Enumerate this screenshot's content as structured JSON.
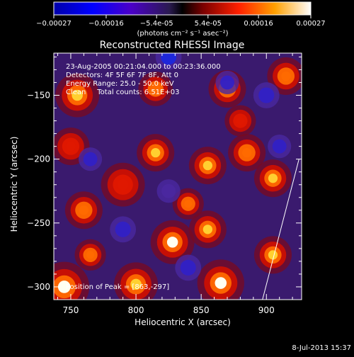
{
  "colorbar": {
    "tick_labels": [
      "-0.00027",
      "-0.00016",
      "-5.4e-05",
      "5.4e-05",
      "0.00016",
      "0.00027"
    ],
    "unit_label": "(photons cm⁻² s⁻¹ asec⁻²)",
    "range": [
      -0.00027,
      0.00027
    ]
  },
  "chart_data": {
    "type": "heatmap",
    "title": "Reconstructed RHESSI Image",
    "xlabel": "Heliocentric X (arcsec)",
    "ylabel": "Heliocentric Y (arcsec)",
    "xlim": [
      737,
      927
    ],
    "ylim": [
      -310,
      -117
    ],
    "x_ticks": [
      750,
      800,
      850,
      900
    ],
    "y_ticks": [
      -300,
      -250,
      -200,
      -150
    ],
    "x_tick_labels": [
      "750",
      "800",
      "850",
      "900"
    ],
    "y_tick_labels": [
      "-300",
      "-250",
      "-200",
      "-150"
    ],
    "annotations": [
      "23-Aug-2005 00:21:04.000 to 00:23:36.000",
      "Detectors: 4F 5F 6F 7F 8F, Att 0",
      "Energy Range: 25.0 - 50.0 keV",
      "Clean     Total counts: 6.51E+03"
    ],
    "peak_label": "Position of Peak = [863,-297]",
    "limb_line": [
      [
        897,
        -310
      ],
      [
        925,
        -200
      ]
    ],
    "blobs": [
      {
        "x": 745,
        "y": -300,
        "v": 1.0,
        "r": 16
      },
      {
        "x": 800,
        "y": -298,
        "v": 0.8,
        "r": 14
      },
      {
        "x": 865,
        "y": -297,
        "v": 1.0,
        "r": 15
      },
      {
        "x": 828,
        "y": -265,
        "v": 0.95,
        "r": 14
      },
      {
        "x": 855,
        "y": -255,
        "v": 0.75,
        "r": 12
      },
      {
        "x": 905,
        "y": -275,
        "v": 0.75,
        "r": 12
      },
      {
        "x": 765,
        "y": -275,
        "v": 0.6,
        "r": 10
      },
      {
        "x": 760,
        "y": -240,
        "v": 0.7,
        "r": 12
      },
      {
        "x": 790,
        "y": -220,
        "v": 0.55,
        "r": 14
      },
      {
        "x": 815,
        "y": -195,
        "v": 0.8,
        "r": 12
      },
      {
        "x": 855,
        "y": -205,
        "v": 0.75,
        "r": 12
      },
      {
        "x": 885,
        "y": -195,
        "v": 0.7,
        "r": 12
      },
      {
        "x": 905,
        "y": -215,
        "v": 0.85,
        "r": 12
      },
      {
        "x": 840,
        "y": -235,
        "v": 0.6,
        "r": 10
      },
      {
        "x": 750,
        "y": -190,
        "v": 0.55,
        "r": 12
      },
      {
        "x": 755,
        "y": -150,
        "v": 0.75,
        "r": 14
      },
      {
        "x": 815,
        "y": -145,
        "v": 0.6,
        "r": 11
      },
      {
        "x": 870,
        "y": -145,
        "v": 0.7,
        "r": 12
      },
      {
        "x": 915,
        "y": -135,
        "v": 0.7,
        "r": 12
      },
      {
        "x": 880,
        "y": -170,
        "v": 0.55,
        "r": 10
      },
      {
        "x": 790,
        "y": -255,
        "v": -0.7,
        "r": 10
      },
      {
        "x": 840,
        "y": -285,
        "v": -0.7,
        "r": 10
      },
      {
        "x": 870,
        "y": -140,
        "v": -0.6,
        "r": 9
      },
      {
        "x": 825,
        "y": -120,
        "v": -0.8,
        "r": 10
      },
      {
        "x": 765,
        "y": -200,
        "v": -0.6,
        "r": 9
      },
      {
        "x": 910,
        "y": -190,
        "v": -0.65,
        "r": 9
      },
      {
        "x": 900,
        "y": -150,
        "v": -0.7,
        "r": 10
      },
      {
        "x": 825,
        "y": -225,
        "v": -0.5,
        "r": 9
      }
    ]
  },
  "footer": {
    "timestamp": "8-Jul-2013 15:37"
  }
}
